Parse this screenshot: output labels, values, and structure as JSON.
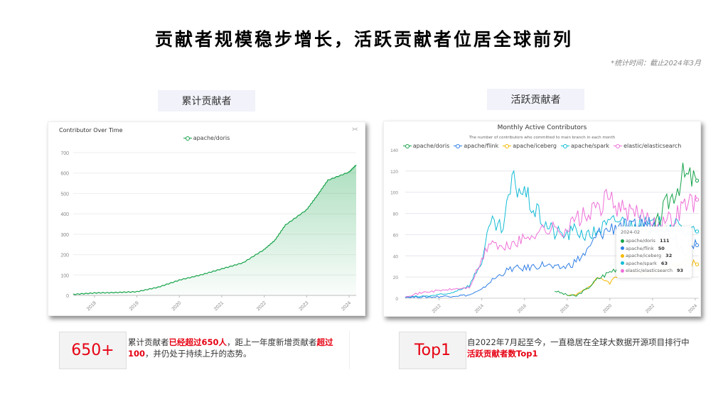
{
  "page": {
    "title": "贡献者规模稳步增长，活跃贡献者位居全球前列",
    "stat_time": "*统计时间：截止2024年3月"
  },
  "sections": {
    "left_label": "累计贡献者",
    "right_label": "活跃贡献者"
  },
  "left_chart": {
    "title": "Contributor Over Time",
    "legend": "apache/doris",
    "share_icon": "⪥"
  },
  "right_chart": {
    "title": "Monthly Active Contributors",
    "subtitle": "The number of contributors who committed to main branch in each month",
    "legend": [
      "apache/doris",
      "apache/flink",
      "apache/iceberg",
      "apache/spark",
      "elastic/elasticsearch"
    ],
    "tooltip": {
      "date": "2024-02",
      "rows": [
        {
          "name": "apache/doris",
          "value": "111"
        },
        {
          "name": "apache/flink",
          "value": "50"
        },
        {
          "name": "apache/iceberg",
          "value": "32"
        },
        {
          "name": "apache/spark",
          "value": "63"
        },
        {
          "name": "elastic/elasticsearch",
          "value": "93"
        }
      ]
    }
  },
  "kpis": {
    "left": {
      "value": "650+",
      "t1": "累计贡献者",
      "h1": "已经超过650人",
      "t2": "，距上一年度新增贡献者",
      "h2": "超过100",
      "t3": "，并仍处于持续上升的态势。"
    },
    "right": {
      "value": "Top1",
      "t1": "自2022年7月起至今，一直稳居在全球大数据开源项目排行中",
      "h1": "活跃贡献者数Top1"
    }
  },
  "colors": {
    "doris": "#16a34a",
    "flink": "#2f7fe6",
    "iceberg": "#f5b800",
    "spark": "#14bcd6",
    "elasticsearch": "#ee70d8",
    "highlight": "#e60012"
  },
  "chart_data": [
    {
      "type": "area",
      "title": "Contributor Over Time",
      "xlabel": "",
      "ylabel": "",
      "x_ticks": [
        "2018",
        "2019",
        "2020",
        "2021",
        "2022",
        "2023",
        "2024"
      ],
      "y_ticks": [
        0,
        100,
        200,
        300,
        400,
        500,
        600,
        700
      ],
      "ylim": [
        0,
        700
      ],
      "grid": true,
      "legend_position": "top",
      "series": [
        {
          "name": "apache/doris",
          "x": [
            "2017-07",
            "2018-01",
            "2018-07",
            "2019-01",
            "2019-07",
            "2020-01",
            "2020-07",
            "2021-01",
            "2021-07",
            "2022-01",
            "2022-04",
            "2022-07",
            "2023-01",
            "2023-04",
            "2023-07",
            "2024-01",
            "2024-03"
          ],
          "values": [
            5,
            12,
            14,
            18,
            40,
            75,
            100,
            130,
            160,
            225,
            270,
            345,
            420,
            490,
            565,
            605,
            640
          ]
        }
      ]
    },
    {
      "type": "line",
      "title": "Monthly Active Contributors",
      "subtitle": "The number of contributors who committed to main branch in each month",
      "x_ticks": [
        "2012",
        "2014",
        "2016",
        "2018",
        "2020",
        "2022",
        "2024"
      ],
      "y_ticks": [
        0,
        20,
        40,
        60,
        80,
        100,
        120,
        140
      ],
      "ylim": [
        0,
        140
      ],
      "grid": true,
      "legend_position": "top",
      "x": [
        "2010-06",
        "2011-06",
        "2012-06",
        "2013-06",
        "2014-01",
        "2014-06",
        "2015-01",
        "2015-06",
        "2016-01",
        "2016-06",
        "2017-01",
        "2017-06",
        "2018-01",
        "2018-06",
        "2019-01",
        "2019-06",
        "2020-01",
        "2020-06",
        "2021-01",
        "2021-06",
        "2022-01",
        "2022-06",
        "2023-01",
        "2023-06",
        "2024-02"
      ],
      "series": [
        {
          "name": "apache/doris",
          "values": [
            null,
            null,
            null,
            null,
            null,
            null,
            null,
            null,
            null,
            null,
            null,
            7,
            3,
            2,
            10,
            18,
            25,
            30,
            40,
            50,
            60,
            80,
            100,
            115,
            111
          ]
        },
        {
          "name": "apache/flink",
          "values": [
            1,
            1,
            2,
            3,
            8,
            16,
            24,
            28,
            28,
            30,
            32,
            28,
            30,
            35,
            45,
            60,
            65,
            70,
            65,
            70,
            70,
            65,
            60,
            45,
            50
          ]
        },
        {
          "name": "apache/iceberg",
          "values": [
            null,
            null,
            null,
            null,
            null,
            null,
            null,
            null,
            null,
            null,
            null,
            null,
            2,
            3,
            10,
            18,
            15,
            22,
            25,
            25,
            22,
            28,
            30,
            35,
            32
          ]
        },
        {
          "name": "apache/spark",
          "values": [
            1,
            2,
            4,
            12,
            35,
            70,
            65,
            110,
            100,
            85,
            70,
            62,
            60,
            65,
            58,
            65,
            70,
            75,
            68,
            70,
            68,
            70,
            68,
            65,
            63
          ]
        },
        {
          "name": "elastic/elasticsearch",
          "values": [
            2,
            6,
            8,
            10,
            35,
            55,
            45,
            52,
            55,
            62,
            65,
            65,
            65,
            75,
            78,
            85,
            95,
            85,
            80,
            78,
            75,
            72,
            75,
            88,
            93
          ]
        }
      ]
    }
  ]
}
